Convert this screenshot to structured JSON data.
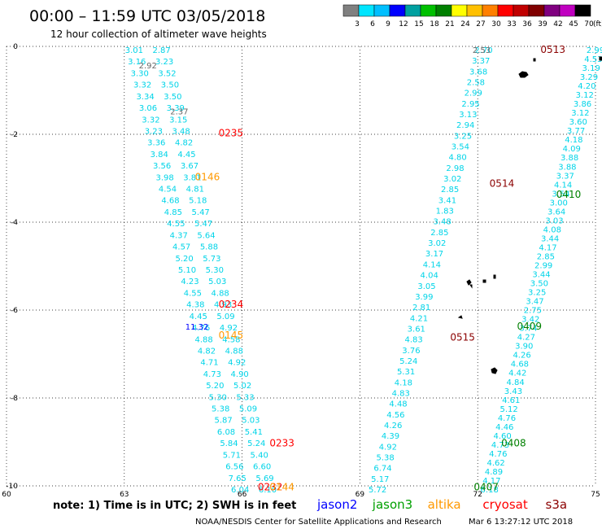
{
  "header": {
    "title": "00:00 – 11:59 UTC 03/05/2018",
    "subtitle": "12 hour collection of altimeter wave heights"
  },
  "colorbar": {
    "labels": [
      "3",
      "6",
      "9",
      "12",
      "15",
      "18",
      "21",
      "24",
      "27",
      "30",
      "33",
      "36",
      "39",
      "42",
      "45",
      "70"
    ],
    "unit": "(ft)",
    "colors": [
      "#808080",
      "#00e5ff",
      "#00bfff",
      "#0000ff",
      "#00a0a0",
      "#00c000",
      "#008000",
      "#ffff00",
      "#ffc000",
      "#ff8000",
      "#ff0000",
      "#c00000",
      "#800000",
      "#800080",
      "#c000c0",
      "#000000"
    ]
  },
  "axes": {
    "x_ticks": [
      "60",
      "63",
      "66",
      "69",
      "72",
      "75"
    ],
    "y_ticks": [
      "0",
      "-2",
      "-4",
      "-6",
      "-8",
      "-10"
    ]
  },
  "time_labels": [
    {
      "text": "0513",
      "color": "#8b0000",
      "lon": 73.6,
      "lat": 0.0
    },
    {
      "text": "0235",
      "color": "#ff0000",
      "lon": 65.4,
      "lat": -1.9
    },
    {
      "text": "0146",
      "color": "#ff9900",
      "lon": 64.8,
      "lat": -2.9
    },
    {
      "text": "0514",
      "color": "#8b0000",
      "lon": 72.3,
      "lat": -3.05
    },
    {
      "text": "0410",
      "color": "#008000",
      "lon": 74.0,
      "lat": -3.3
    },
    {
      "text": "0234",
      "color": "#ff0000",
      "lon": 65.4,
      "lat": -5.8
    },
    {
      "text": "0409",
      "color": "#008000",
      "lon": 73.0,
      "lat": -6.3
    },
    {
      "text": "0145",
      "color": "#ff9900",
      "lon": 65.4,
      "lat": -6.5
    },
    {
      "text": "0515",
      "color": "#8b0000",
      "lon": 71.3,
      "lat": -6.55
    },
    {
      "text": "0233",
      "color": "#ff0000",
      "lon": 66.7,
      "lat": -8.95
    },
    {
      "text": "0408",
      "color": "#008000",
      "lon": 72.6,
      "lat": -8.95
    },
    {
      "text": "0232",
      "color": "#ff0000",
      "lon": 66.4,
      "lat": -9.95
    },
    {
      "text": "0144",
      "color": "#ff9900",
      "lon": 66.7,
      "lat": -9.95
    },
    {
      "text": "0407",
      "color": "#008000",
      "lon": 71.9,
      "lat": -9.95
    }
  ],
  "tracks": [
    {
      "id": "track-a",
      "lon_start": 63.25,
      "lat_start": 0.0,
      "lon_end": 65.95,
      "lat_end": -10.0,
      "values": [
        "3.01",
        "3.16",
        "3.30",
        "3.32",
        "3.34",
        "3.06",
        "3.32",
        "3.23",
        "3.36",
        "3.84",
        "3.56",
        "3.98",
        "4.54",
        "4.68",
        "4.85",
        "4.55",
        "4.37",
        "4.57",
        "5.20",
        "5.10",
        "4.23",
        "4.55",
        "4.38",
        "4.45",
        "4.76",
        "4.88",
        "4.82",
        "4.71",
        "4.73",
        "5.20",
        "5.30",
        "5.38",
        "5.87",
        "6.08",
        "5.84",
        "5.71",
        "6.56",
        "7.65",
        "6.04"
      ]
    },
    {
      "id": "track-b",
      "lon_start": 63.95,
      "lat_start": 0.0,
      "lon_end": 66.65,
      "lat_end": -10.0,
      "values": [
        "2.87",
        "3.23",
        "3.52",
        "3.50",
        "3.50",
        "3.39",
        "3.15",
        "3.48",
        "4.82",
        "4.45",
        "3.67",
        "3.81",
        "4.81",
        "5.18",
        "5.47",
        "5.47",
        "5.64",
        "5.88",
        "5.73",
        "5.30",
        "5.03",
        "4.88",
        "4.93",
        "5.09",
        "4.92",
        "4.58",
        "4.88",
        "4.92",
        "4.90",
        "5.02",
        "5.33",
        "5.09",
        "5.03",
        "5.41",
        "5.24",
        "5.40",
        "6.60",
        "5.69",
        "6.10"
      ]
    },
    {
      "id": "track-c",
      "lon_start": 72.15,
      "lat_start": 0.0,
      "lon_end": 69.45,
      "lat_end": -10.0,
      "values": [
        "2.70",
        "3.37",
        "3.68",
        "2.58",
        "2.99",
        "2.95",
        "3.13",
        "2.94",
        "3.25",
        "3.54",
        "4.80",
        "2.98",
        "3.02",
        "2.85",
        "3.41",
        "1.83",
        "3.48",
        "2.85",
        "3.02",
        "3.17",
        "4.14",
        "4.04",
        "3.05",
        "3.99",
        "2.81",
        "4.21",
        "3.61",
        "4.83",
        "3.76",
        "5.24",
        "5.31",
        "4.18",
        "4.83",
        "4.48",
        "4.56",
        "4.26",
        "4.39",
        "4.92",
        "5.38",
        "6.74",
        "5.17",
        "5.72"
      ]
    },
    {
      "id": "track-d",
      "lon_start": 75.0,
      "lat_start": 0.0,
      "lon_end": 72.3,
      "lat_end": -10.0,
      "values": [
        "2.99",
        "4.53",
        "3.19",
        "3.29",
        "4.20",
        "3.12",
        "3.86",
        "3.12",
        "3.60",
        "3.77",
        "4.18",
        "4.09",
        "3.88",
        "3.88",
        "3.37",
        "4.14",
        "3.54",
        "3.00",
        "3.64",
        "3.03",
        "4.08",
        "3.44",
        "4.17",
        "2.85",
        "2.99",
        "3.44",
        "3.50",
        "3.25",
        "3.47",
        "2.75",
        "3.42",
        "3.74",
        "4.27",
        "3.90",
        "4.26",
        "4.68",
        "4.42",
        "4.84",
        "3.43",
        "4.61",
        "5.12",
        "4.76",
        "4.46",
        "4.60",
        "4.73",
        "4.76",
        "4.62",
        "4.89",
        "4.17",
        "6.18"
      ]
    }
  ],
  "gray_values": [
    {
      "text": "2.92",
      "lon": 63.6,
      "lat": -0.35
    },
    {
      "text": "2.37",
      "lon": 64.4,
      "lat": -1.4
    },
    {
      "text": "2.53",
      "lon": 72.1,
      "lat": 0.0
    }
  ],
  "blue_values": [
    {
      "text": "11.32",
      "lon": 64.85,
      "lat": -6.3
    }
  ],
  "legend_line": {
    "note": "note:  1) Time is in UTC;  2) SWH is in feet",
    "satellites": [
      {
        "name": "jason2",
        "color": "#0000ff"
      },
      {
        "name": "jason3",
        "color": "#00a000"
      },
      {
        "name": "altika",
        "color": "#ff9900"
      },
      {
        "name": "cryosat",
        "color": "#ff0000"
      },
      {
        "name": "s3a",
        "color": "#8b0000"
      }
    ]
  },
  "footer": {
    "credit": "NOAA/NESDIS Center for Satellite Applications and Research",
    "timestamp": "Mar  6 13:27:12 UTC 2018"
  }
}
